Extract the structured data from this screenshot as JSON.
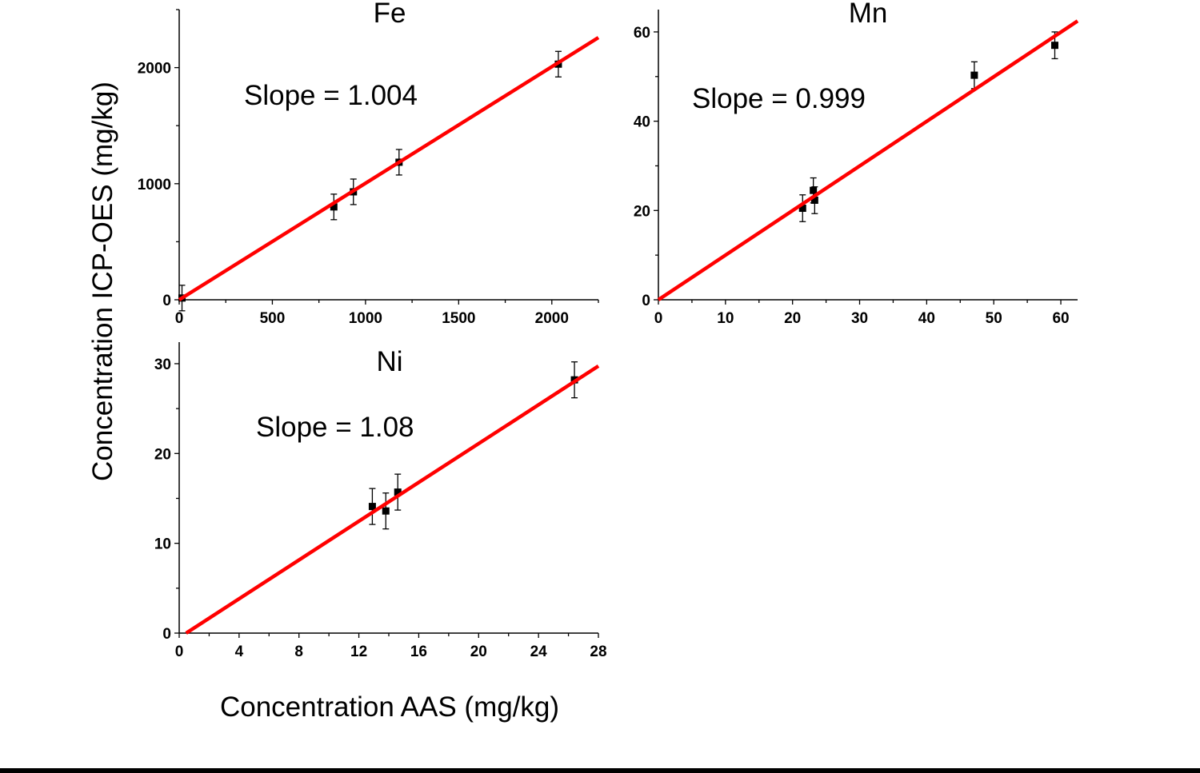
{
  "chart_data": [
    {
      "type": "scatter",
      "title": "Fe",
      "annotation": "Slope = 1.004",
      "xlim": [
        0,
        2250
      ],
      "ylim": [
        0,
        2500
      ],
      "xticks": [
        0,
        500,
        1000,
        1500,
        2000
      ],
      "xminor": 250,
      "yticks": [
        0,
        1000,
        2000
      ],
      "yminor": 500,
      "points": [
        {
          "x": 15,
          "y": 15,
          "err": 110
        },
        {
          "x": 830,
          "y": 800,
          "err": 110
        },
        {
          "x": 935,
          "y": 930,
          "err": 110
        },
        {
          "x": 1180,
          "y": 1185,
          "err": 110
        },
        {
          "x": 2035,
          "y": 2030,
          "err": 110
        }
      ],
      "fit": {
        "slope": 1.004,
        "intercept": 0,
        "color": "#ff0000"
      }
    },
    {
      "type": "scatter",
      "title": "Mn",
      "annotation": "Slope = 0.999",
      "xlim": [
        0,
        62.5
      ],
      "ylim": [
        0,
        65
      ],
      "xticks": [
        0,
        10,
        20,
        30,
        40,
        50,
        60
      ],
      "xminor": 5,
      "yticks": [
        0,
        20,
        40,
        60
      ],
      "yminor": 10,
      "points": [
        {
          "x": 21.5,
          "y": 20.5,
          "err": 3
        },
        {
          "x": 23.1,
          "y": 24.5,
          "err": 2.8
        },
        {
          "x": 23.3,
          "y": 22.3,
          "err": 3
        },
        {
          "x": 47.1,
          "y": 50.3,
          "err": 3
        },
        {
          "x": 59.1,
          "y": 57.0,
          "err": 3
        }
      ],
      "fit": {
        "slope": 0.999,
        "intercept": 0,
        "color": "#ff0000"
      }
    },
    {
      "type": "scatter",
      "title": "Ni",
      "annotation": "Slope = 1.08",
      "xlim": [
        0,
        28
      ],
      "ylim": [
        0,
        32.4
      ],
      "xticks": [
        0,
        4,
        8,
        12,
        16,
        20,
        24,
        28
      ],
      "xminor": 2,
      "yticks": [
        0,
        10,
        20,
        30
      ],
      "yminor": 5,
      "points": [
        {
          "x": 12.9,
          "y": 14.1,
          "err": 2
        },
        {
          "x": 13.8,
          "y": 13.6,
          "err": 2
        },
        {
          "x": 14.6,
          "y": 15.7,
          "err": 2
        },
        {
          "x": 26.4,
          "y": 28.2,
          "err": 2
        }
      ],
      "fit": {
        "slope": 1.08,
        "intercept": -0.5,
        "color": "#ff0000"
      }
    }
  ],
  "xlabel": "Concentration AAS (mg/kg)",
  "ylabel": "Concentration ICP-OES (mg/kg)"
}
